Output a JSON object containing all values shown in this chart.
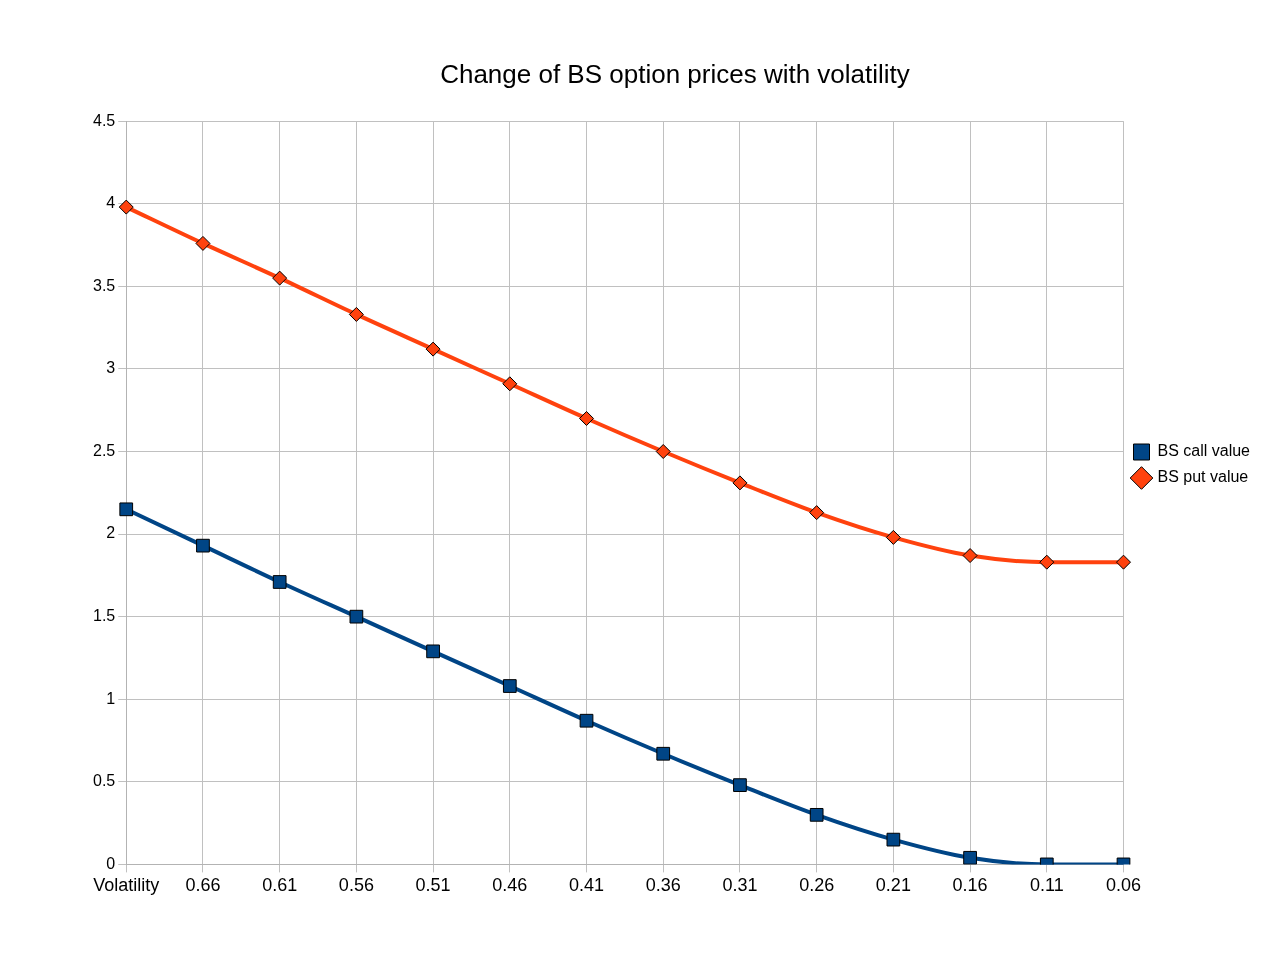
{
  "chart_data": {
    "type": "line",
    "title": "Change of BS option prices with volatility",
    "categories": [
      "Volatility",
      "0.66",
      "0.61",
      "0.56",
      "0.51",
      "0.46",
      "0.41",
      "0.36",
      "0.31",
      "0.26",
      "0.21",
      "0.16",
      "0.11",
      "0.06"
    ],
    "series": [
      {
        "name": "BS call value",
        "color": "#004586",
        "marker": "square",
        "values": [
          2.15,
          1.93,
          1.71,
          1.5,
          1.29,
          1.08,
          0.87,
          0.67,
          0.48,
          0.3,
          0.15,
          0.04,
          0.0,
          0.0
        ]
      },
      {
        "name": "BS put value",
        "color": "#ff420e",
        "marker": "diamond",
        "values": [
          3.98,
          3.76,
          3.55,
          3.33,
          3.12,
          2.91,
          2.7,
          2.5,
          2.31,
          2.13,
          1.98,
          1.87,
          1.83,
          1.83
        ]
      }
    ],
    "ylim": [
      0,
      4.5
    ],
    "yticks": [
      0,
      0.5,
      1,
      1.5,
      2,
      2.5,
      3,
      3.5,
      4,
      4.5
    ],
    "grid": true,
    "legend": "right",
    "line_style": "solid"
  }
}
